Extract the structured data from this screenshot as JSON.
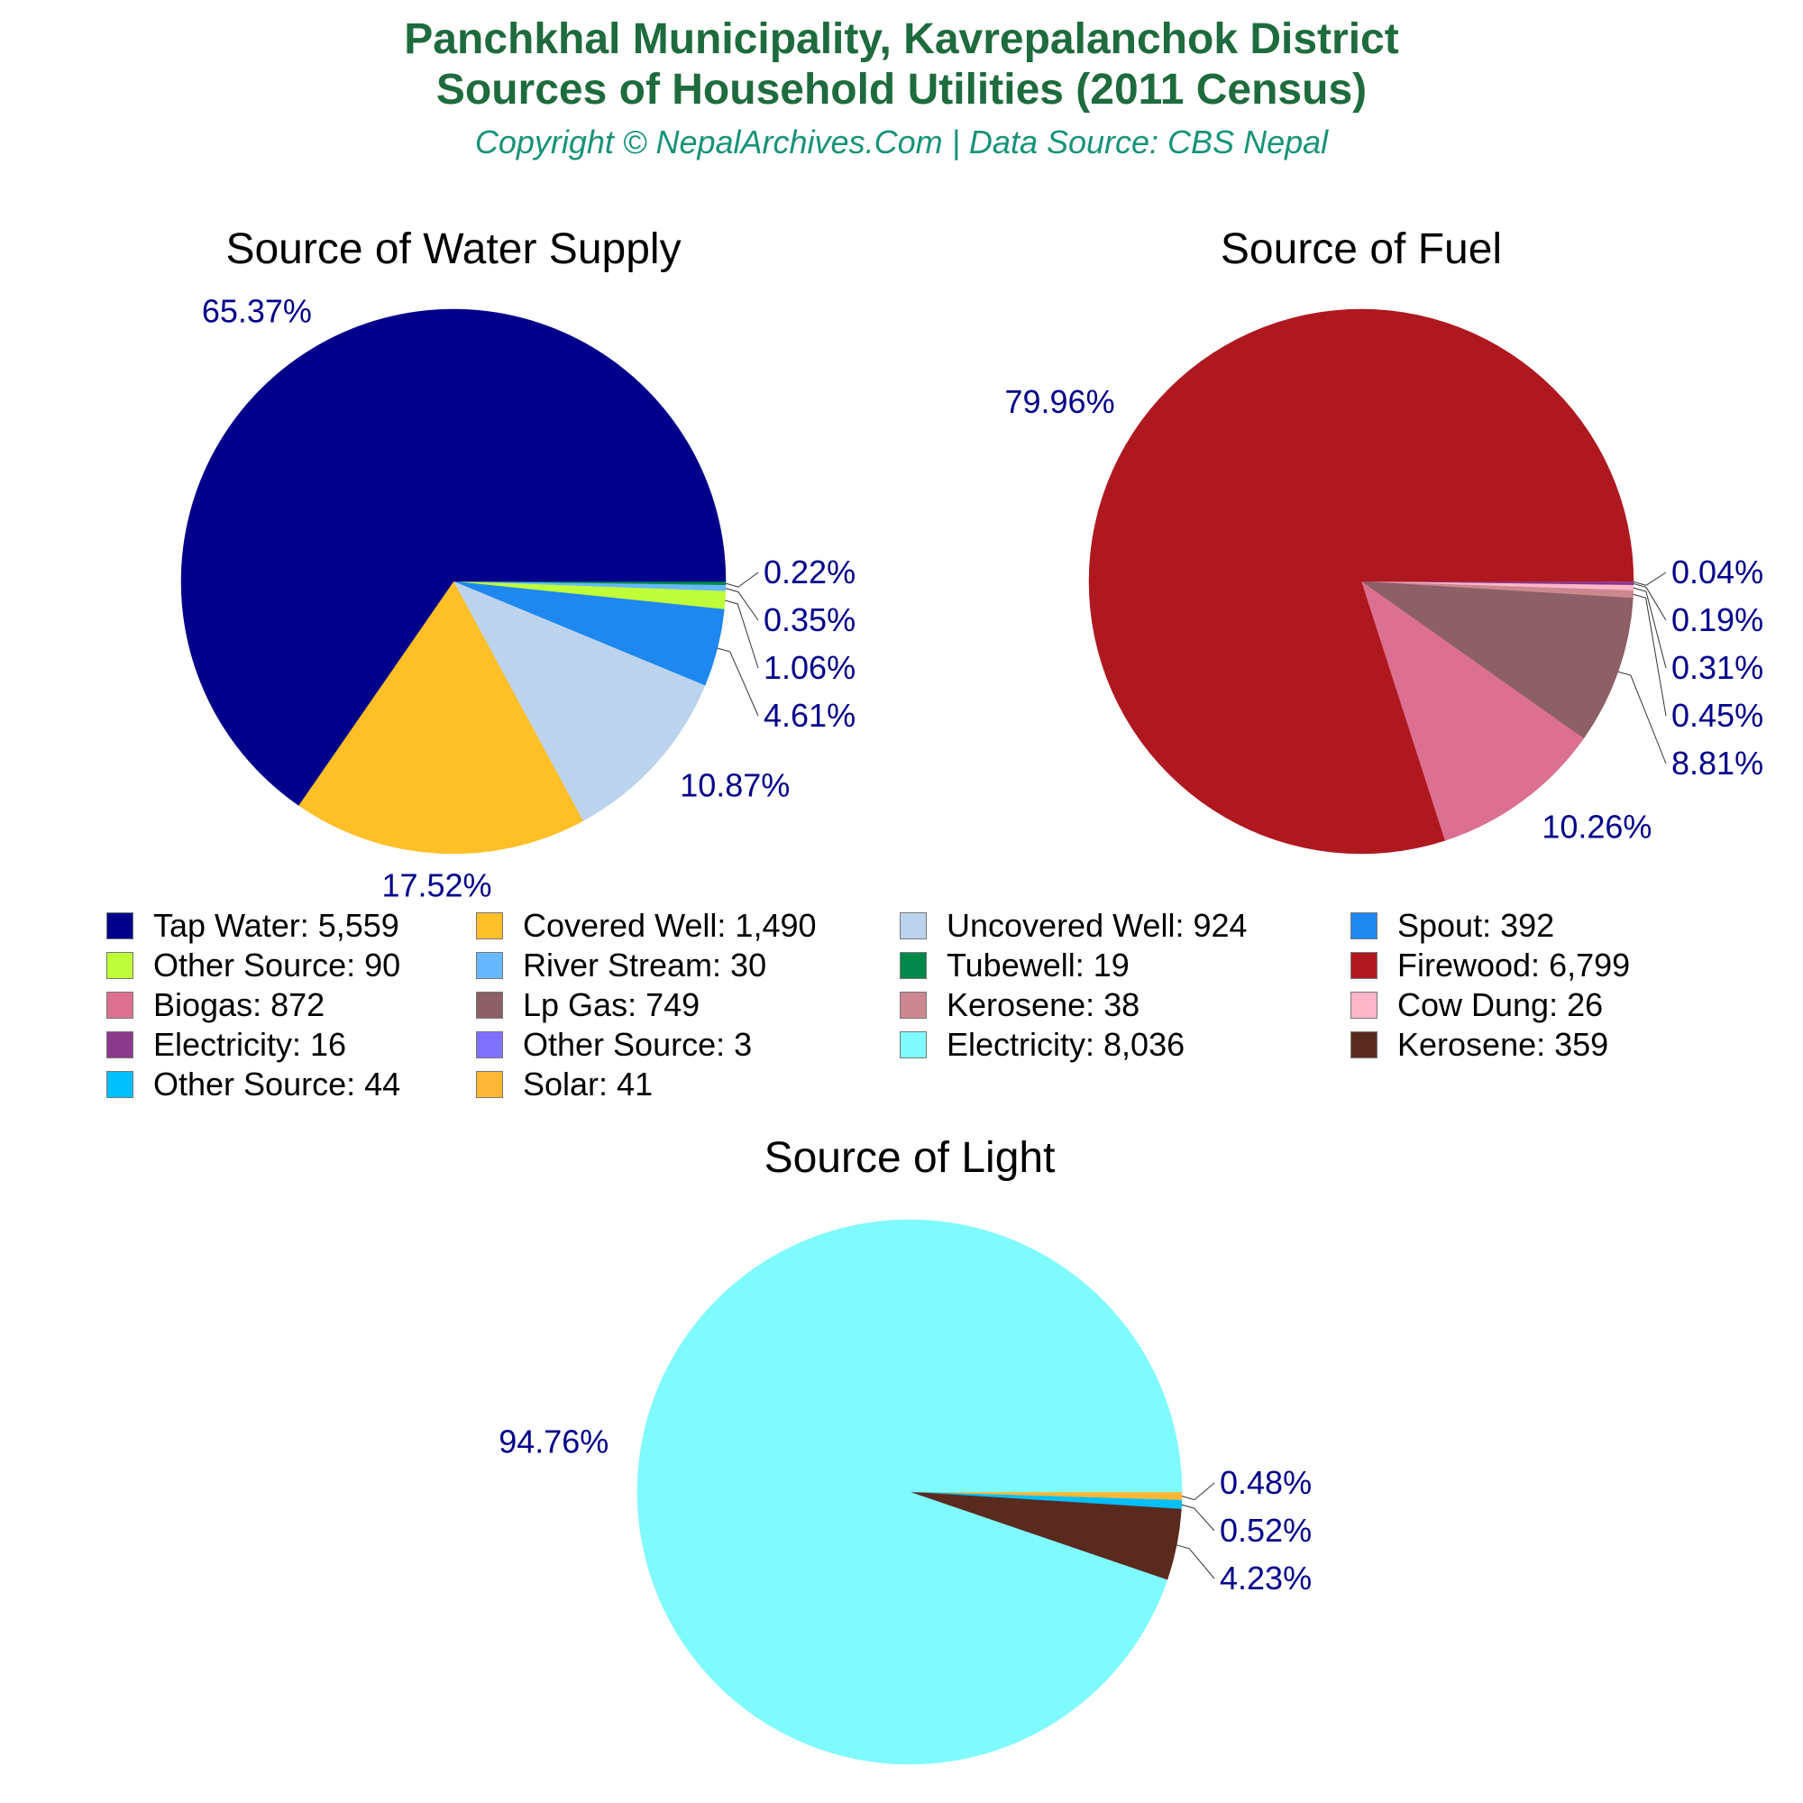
{
  "header": {
    "title_line1": "Panchkhal Municipality, Kavrepalanchok District",
    "title_line2": "Sources of Household Utilities (2011 Census)",
    "subtitle": "Copyright © NepalArchives.Com | Data Source: CBS Nepal"
  },
  "chart_data": [
    {
      "type": "pie",
      "title": "Source of Water Supply",
      "slices": [
        {
          "label": "Tap Water",
          "value": 5559,
          "pct": "65.37%",
          "color": "#00008b"
        },
        {
          "label": "Covered Well",
          "value": 1490,
          "pct": "17.52%",
          "color": "#ffbf27"
        },
        {
          "label": "Uncovered Well",
          "value": 924,
          "pct": "10.87%",
          "color": "#bcd3ee"
        },
        {
          "label": "Spout",
          "value": 392,
          "pct": "4.61%",
          "color": "#1e88f0"
        },
        {
          "label": "Other Source",
          "value": 90,
          "pct": "1.06%",
          "color": "#bfff3a"
        },
        {
          "label": "River Stream",
          "value": 30,
          "pct": "0.35%",
          "color": "#66b9ff"
        },
        {
          "label": "Tubewell",
          "value": 19,
          "pct": "0.22%",
          "color": "#00884a"
        }
      ]
    },
    {
      "type": "pie",
      "title": "Source of Fuel",
      "slices": [
        {
          "label": "Firewood",
          "value": 6799,
          "pct": "79.96%",
          "color": "#b01820"
        },
        {
          "label": "Biogas",
          "value": 872,
          "pct": "10.26%",
          "color": "#dc7090"
        },
        {
          "label": "Lp Gas",
          "value": 749,
          "pct": "8.81%",
          "color": "#8c6066"
        },
        {
          "label": "Kerosene",
          "value": 38,
          "pct": "0.45%",
          "color": "#cc8890"
        },
        {
          "label": "Cow Dung",
          "value": 26,
          "pct": "0.31%",
          "color": "#ffb6c8"
        },
        {
          "label": "Electricity",
          "value": 16,
          "pct": "0.19%",
          "color": "#8b3a8b"
        },
        {
          "label": "Other Source",
          "value": 3,
          "pct": "0.04%",
          "color": "#8070ff"
        }
      ]
    },
    {
      "type": "pie",
      "title": "Source of Light",
      "slices": [
        {
          "label": "Electricity",
          "value": 8036,
          "pct": "94.76%",
          "color": "#7ffaff"
        },
        {
          "label": "Kerosene",
          "value": 359,
          "pct": "4.23%",
          "color": "#5a2a1e"
        },
        {
          "label": "Other Source",
          "value": 44,
          "pct": "0.52%",
          "color": "#00bfff"
        },
        {
          "label": "Solar",
          "value": 41,
          "pct": "0.48%",
          "color": "#ffb733"
        }
      ]
    }
  ],
  "legend": [
    {
      "text": "Tap Water: 5,559",
      "color": "#00008b"
    },
    {
      "text": "Covered Well: 1,490",
      "color": "#ffbf27"
    },
    {
      "text": "Uncovered Well: 924",
      "color": "#bcd3ee"
    },
    {
      "text": "Spout: 392",
      "color": "#1e88f0"
    },
    {
      "text": "Other Source: 90",
      "color": "#bfff3a"
    },
    {
      "text": "River Stream: 30",
      "color": "#66b9ff"
    },
    {
      "text": "Tubewell: 19",
      "color": "#00884a"
    },
    {
      "text": "Firewood: 6,799",
      "color": "#b01820"
    },
    {
      "text": "Biogas: 872",
      "color": "#dc7090"
    },
    {
      "text": "Lp Gas: 749",
      "color": "#8c6066"
    },
    {
      "text": "Kerosene: 38",
      "color": "#cc8890"
    },
    {
      "text": "Cow Dung: 26",
      "color": "#ffb6c8"
    },
    {
      "text": "Electricity: 16",
      "color": "#8b3a8b"
    },
    {
      "text": "Other Source: 3",
      "color": "#8070ff"
    },
    {
      "text": "Electricity: 8,036",
      "color": "#7ffaff"
    },
    {
      "text": "Kerosene: 359",
      "color": "#5a2a1e"
    },
    {
      "text": "Other Source: 44",
      "color": "#00bfff"
    },
    {
      "text": "Solar: 41",
      "color": "#ffb733"
    }
  ]
}
